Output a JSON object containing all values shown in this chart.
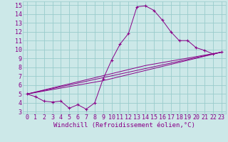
{
  "xlabel": "Windchill (Refroidissement éolien,°C)",
  "bg_color": "#cce8e8",
  "grid_color": "#99cccc",
  "line_color": "#880088",
  "xlim": [
    -0.5,
    23.5
  ],
  "ylim": [
    2.8,
    15.4
  ],
  "xticks": [
    0,
    1,
    2,
    3,
    4,
    5,
    6,
    7,
    8,
    9,
    10,
    11,
    12,
    13,
    14,
    15,
    16,
    17,
    18,
    19,
    20,
    21,
    22,
    23
  ],
  "yticks": [
    3,
    4,
    5,
    6,
    7,
    8,
    9,
    10,
    11,
    12,
    13,
    14,
    15
  ],
  "main_x": [
    0,
    1,
    2,
    3,
    4,
    5,
    6,
    7,
    8,
    9,
    10,
    11,
    12,
    13,
    14,
    15,
    16,
    17,
    18,
    19,
    20,
    21,
    22,
    23
  ],
  "main_y": [
    5.0,
    4.7,
    4.2,
    4.1,
    4.2,
    3.4,
    3.8,
    3.3,
    4.0,
    6.7,
    8.8,
    10.6,
    11.8,
    14.8,
    14.9,
    14.4,
    13.3,
    12.0,
    11.0,
    11.0,
    10.2,
    9.9,
    9.5,
    9.7
  ],
  "ref_line1_x": [
    0,
    23
  ],
  "ref_line1_y": [
    5.0,
    9.7
  ],
  "ref_line2_x": [
    0,
    9,
    23
  ],
  "ref_line2_y": [
    5.0,
    6.5,
    9.7
  ],
  "ref_line3_x": [
    0,
    14,
    23
  ],
  "ref_line3_y": [
    5.0,
    8.2,
    9.7
  ],
  "marker_size": 2.5,
  "font_size": 6.5,
  "tick_font_size": 6.0
}
